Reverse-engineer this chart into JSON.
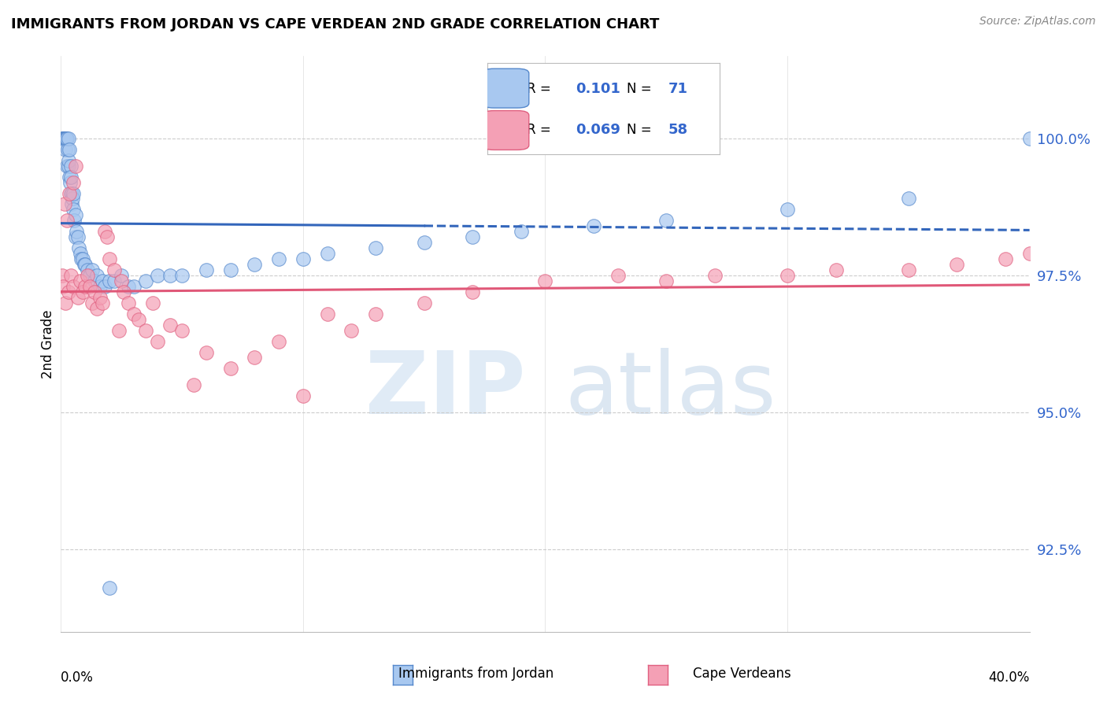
{
  "title": "IMMIGRANTS FROM JORDAN VS CAPE VERDEAN 2ND GRADE CORRELATION CHART",
  "source": "Source: ZipAtlas.com",
  "ylabel": "2nd Grade",
  "legend_blue_r": "0.101",
  "legend_blue_n": "71",
  "legend_pink_r": "0.069",
  "legend_pink_n": "58",
  "legend_label_blue": "Immigrants from Jordan",
  "legend_label_pink": "Cape Verdeans",
  "xlim": [
    0.0,
    40.0
  ],
  "ylim": [
    91.0,
    101.5
  ],
  "yticks": [
    92.5,
    95.0,
    97.5,
    100.0
  ],
  "ytick_labels": [
    "92.5%",
    "95.0%",
    "97.5%",
    "100.0%"
  ],
  "blue_color": "#A8C8F0",
  "pink_color": "#F4A0B5",
  "blue_edge_color": "#5588CC",
  "pink_edge_color": "#E06080",
  "blue_line_color": "#3366BB",
  "pink_line_color": "#E05878",
  "blue_scatter_x": [
    0.05,
    0.08,
    0.1,
    0.12,
    0.15,
    0.15,
    0.18,
    0.2,
    0.2,
    0.22,
    0.25,
    0.25,
    0.28,
    0.3,
    0.3,
    0.32,
    0.35,
    0.35,
    0.38,
    0.4,
    0.4,
    0.42,
    0.45,
    0.45,
    0.48,
    0.5,
    0.5,
    0.55,
    0.6,
    0.6,
    0.65,
    0.7,
    0.75,
    0.8,
    0.85,
    0.9,
    0.95,
    1.0,
    1.1,
    1.2,
    1.3,
    1.4,
    1.5,
    1.6,
    1.7,
    1.8,
    2.0,
    2.2,
    2.5,
    2.8,
    3.0,
    3.5,
    4.0,
    4.5,
    5.0,
    6.0,
    7.0,
    8.0,
    9.0,
    10.0,
    11.0,
    13.0,
    15.0,
    17.0,
    19.0,
    22.0,
    25.0,
    30.0,
    35.0,
    40.0,
    2.0
  ],
  "blue_scatter_y": [
    100.0,
    100.0,
    100.0,
    100.0,
    100.0,
    100.0,
    100.0,
    100.0,
    99.8,
    100.0,
    99.5,
    100.0,
    99.8,
    99.5,
    100.0,
    99.6,
    99.3,
    99.8,
    99.2,
    99.5,
    99.0,
    99.3,
    99.0,
    98.8,
    98.9,
    98.7,
    99.0,
    98.5,
    98.6,
    98.2,
    98.3,
    98.2,
    98.0,
    97.9,
    97.8,
    97.8,
    97.7,
    97.7,
    97.6,
    97.5,
    97.6,
    97.4,
    97.5,
    97.3,
    97.4,
    97.3,
    97.4,
    97.4,
    97.5,
    97.3,
    97.3,
    97.4,
    97.5,
    97.5,
    97.5,
    97.6,
    97.6,
    97.7,
    97.8,
    97.8,
    97.9,
    98.0,
    98.1,
    98.2,
    98.3,
    98.4,
    98.5,
    98.7,
    98.9,
    100.0,
    91.8
  ],
  "blue_solid_max_x": 15.0,
  "pink_scatter_x": [
    0.05,
    0.1,
    0.15,
    0.2,
    0.25,
    0.3,
    0.35,
    0.4,
    0.5,
    0.5,
    0.6,
    0.7,
    0.8,
    0.9,
    1.0,
    1.1,
    1.2,
    1.3,
    1.4,
    1.5,
    1.6,
    1.7,
    1.8,
    1.9,
    2.0,
    2.2,
    2.4,
    2.5,
    2.6,
    2.8,
    3.0,
    3.2,
    3.5,
    3.8,
    4.0,
    4.5,
    5.0,
    5.5,
    6.0,
    7.0,
    8.0,
    9.0,
    10.0,
    11.0,
    12.0,
    13.0,
    15.0,
    17.0,
    20.0,
    23.0,
    25.0,
    27.0,
    30.0,
    32.0,
    35.0,
    37.0,
    39.0,
    40.0
  ],
  "pink_scatter_y": [
    97.5,
    97.3,
    98.8,
    97.0,
    98.5,
    97.2,
    99.0,
    97.5,
    99.2,
    97.3,
    99.5,
    97.1,
    97.4,
    97.2,
    97.3,
    97.5,
    97.3,
    97.0,
    97.2,
    96.9,
    97.1,
    97.0,
    98.3,
    98.2,
    97.8,
    97.6,
    96.5,
    97.4,
    97.2,
    97.0,
    96.8,
    96.7,
    96.5,
    97.0,
    96.3,
    96.6,
    96.5,
    95.5,
    96.1,
    95.8,
    96.0,
    96.3,
    95.3,
    96.8,
    96.5,
    96.8,
    97.0,
    97.2,
    97.4,
    97.5,
    97.4,
    97.5,
    97.5,
    97.6,
    97.6,
    97.7,
    97.8,
    97.9
  ]
}
